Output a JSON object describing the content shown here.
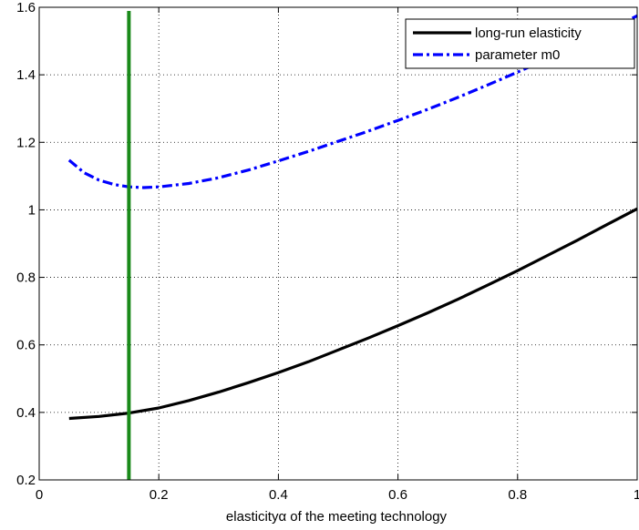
{
  "chart_data": {
    "type": "line",
    "xlabel": "elasticityα of the meeting technology",
    "xlim": [
      0,
      1
    ],
    "ylim": [
      0.2,
      1.6
    ],
    "xticks": [
      0,
      0.2,
      0.4,
      0.6,
      0.8,
      1
    ],
    "xtick_labels": [
      "0",
      "0.2",
      "0.4",
      "0.6",
      "0.8",
      "1"
    ],
    "yticks": [
      0.2,
      0.4,
      0.6,
      0.8,
      1,
      1.2,
      1.4,
      1.6
    ],
    "ytick_labels": [
      "0.2",
      "0.4",
      "0.6",
      "0.8",
      "1",
      "1.2",
      "1.4",
      "1.6"
    ],
    "grid": true,
    "legend_position": "top-right",
    "series": [
      {
        "name": "long-run elasticity",
        "color": "#000000",
        "style": "solid",
        "x": [
          0.05,
          0.1,
          0.15,
          0.2,
          0.25,
          0.3,
          0.35,
          0.4,
          0.45,
          0.5,
          0.55,
          0.6,
          0.65,
          0.7,
          0.75,
          0.8,
          0.85,
          0.9,
          0.95,
          1.0
        ],
        "y": [
          0.382,
          0.388,
          0.398,
          0.413,
          0.435,
          0.46,
          0.488,
          0.518,
          0.55,
          0.585,
          0.62,
          0.657,
          0.695,
          0.735,
          0.777,
          0.82,
          0.865,
          0.91,
          0.957,
          1.003
        ]
      },
      {
        "name": "parameter m0",
        "color": "#0000ff",
        "style": "dashdot",
        "x": [
          0.05,
          0.075,
          0.1,
          0.125,
          0.15,
          0.175,
          0.2,
          0.25,
          0.3,
          0.35,
          0.4,
          0.45,
          0.5,
          0.55,
          0.6,
          0.65,
          0.7,
          0.75,
          0.8,
          0.85,
          0.9,
          0.95,
          1.0
        ],
        "y": [
          1.147,
          1.11,
          1.088,
          1.075,
          1.068,
          1.066,
          1.068,
          1.078,
          1.095,
          1.118,
          1.145,
          1.173,
          1.203,
          1.233,
          1.265,
          1.298,
          1.333,
          1.37,
          1.408,
          1.447,
          1.488,
          1.53,
          1.575
        ]
      }
    ],
    "vline": {
      "x": 0.15,
      "color": "#1a8a1a"
    }
  }
}
